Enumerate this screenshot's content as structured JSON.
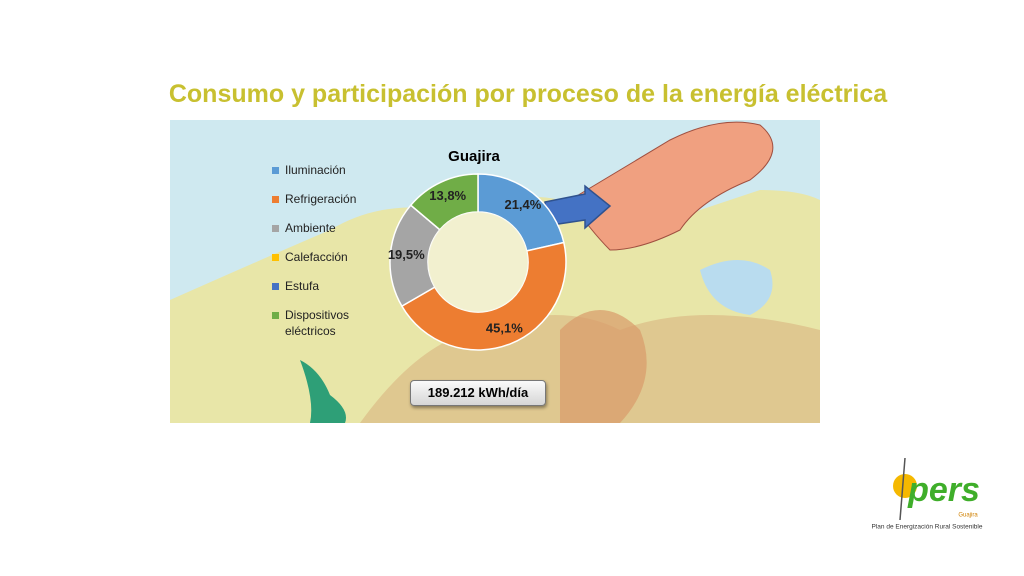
{
  "title": "Consumo y participación por proceso de la energía eléctrica",
  "chart_data": {
    "type": "pie",
    "donut": true,
    "title": "Guajira",
    "categories": [
      "Iluminación",
      "Refrigeración",
      "Ambiente",
      "Calefacción",
      "Estufa",
      "Dispositivos eléctricos"
    ],
    "values": [
      21.4,
      45.1,
      19.5,
      0,
      0,
      13.8
    ],
    "value_labels": [
      "21,4%",
      "45,1%",
      "19,5%",
      null,
      null,
      "13,8%"
    ],
    "colors": [
      "#5b9bd5",
      "#ed7d31",
      "#a5a5a5",
      "#ffc000",
      "#4472c4",
      "#70ad47"
    ],
    "annotation": "189.212 kWh/día"
  },
  "logo": {
    "name": "pers",
    "region": "Guajira",
    "tagline": "Plan de Energización Rural Sostenible"
  }
}
